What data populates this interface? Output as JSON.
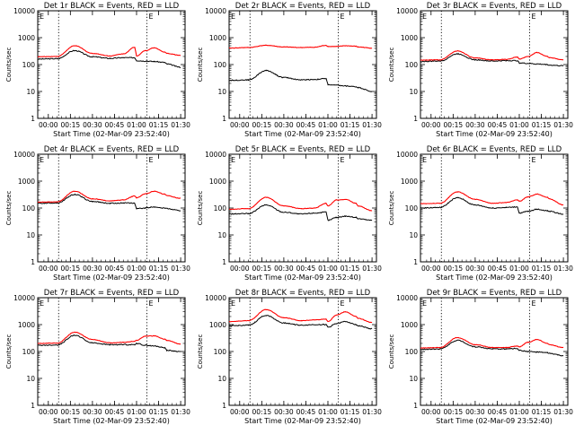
{
  "figure": {
    "xlabel": "Start Time (02-Mar-09 23:52:40)",
    "ylabel": "Counts/sec",
    "x_tick_labels": [
      "00:00",
      "00:15",
      "00:30",
      "00:45",
      "01:00",
      "01:15",
      "01:30"
    ],
    "y_tick_labels": [
      "1",
      "10",
      "100",
      "1000",
      "10000"
    ],
    "marker_label": "E",
    "colors": {
      "events": "#000000",
      "lld": "#ff0000",
      "frame": "#000000",
      "background": "#ffffff"
    }
  },
  "chart_data": [
    {
      "type": "line",
      "title": "Det 1r BLACK = Events, RED = LLD",
      "xlim": [
        -0.12,
        1.55
      ],
      "ylim": [
        1,
        10000
      ],
      "yscale": "log",
      "dotted_vlines": [
        0.117,
        1.117
      ],
      "gaps": [
        [
          0.98,
          1.0
        ],
        [
          1.32,
          1.34
        ]
      ],
      "series": [
        {
          "name": "Events",
          "color": "#000000",
          "x": [
            -0.12,
            0.1,
            0.3,
            0.5,
            0.7,
            0.85,
            0.98,
            1.0,
            1.1,
            1.2,
            1.32,
            1.34,
            1.5
          ],
          "y": [
            160,
            165,
            330,
            195,
            170,
            180,
            180,
            140,
            135,
            130,
            120,
            105,
            80
          ]
        },
        {
          "name": "LLD",
          "color": "#ff0000",
          "x": [
            -0.12,
            0.1,
            0.3,
            0.5,
            0.7,
            0.85,
            0.98,
            1.0,
            1.1,
            1.2,
            1.32,
            1.34,
            1.5
          ],
          "y": [
            195,
            200,
            500,
            260,
            210,
            250,
            440,
            210,
            330,
            420,
            290,
            260,
            220
          ]
        }
      ]
    },
    {
      "type": "line",
      "title": "Det 2r BLACK = Events, RED = LLD",
      "xlim": [
        -0.12,
        1.55
      ],
      "ylim": [
        1,
        10000
      ],
      "yscale": "log",
      "dotted_vlines": [
        0.117,
        1.117
      ],
      "gaps": [
        [
          0.98,
          1.0
        ],
        [
          1.32,
          1.34
        ]
      ],
      "series": [
        {
          "name": "Events",
          "color": "#000000",
          "x": [
            -0.12,
            0.1,
            0.3,
            0.5,
            0.7,
            0.85,
            0.98,
            1.0,
            1.1,
            1.2,
            1.32,
            1.34,
            1.5
          ],
          "y": [
            26,
            27,
            60,
            33,
            27,
            28,
            30,
            18,
            17,
            16,
            15,
            14,
            10
          ]
        },
        {
          "name": "LLD",
          "color": "#ff0000",
          "x": [
            -0.12,
            0.1,
            0.3,
            0.5,
            0.7,
            0.85,
            0.98,
            1.0,
            1.1,
            1.2,
            1.32,
            1.34,
            1.5
          ],
          "y": [
            410,
            430,
            520,
            450,
            430,
            440,
            520,
            470,
            470,
            500,
            480,
            450,
            410
          ]
        }
      ]
    },
    {
      "type": "line",
      "title": "Det 3r BLACK = Events, RED = LLD",
      "xlim": [
        -0.12,
        1.55
      ],
      "ylim": [
        1,
        10000
      ],
      "yscale": "log",
      "dotted_vlines": [
        0.117,
        1.117
      ],
      "gaps": [
        [
          0.98,
          1.0
        ],
        [
          1.32,
          1.34
        ]
      ],
      "series": [
        {
          "name": "Events",
          "color": "#000000",
          "x": [
            -0.12,
            0.1,
            0.3,
            0.5,
            0.7,
            0.85,
            0.98,
            1.0,
            1.1,
            1.2,
            1.32,
            1.34,
            1.5
          ],
          "y": [
            130,
            135,
            250,
            150,
            135,
            140,
            140,
            115,
            110,
            105,
            100,
            95,
            90
          ]
        },
        {
          "name": "LLD",
          "color": "#ff0000",
          "x": [
            -0.12,
            0.1,
            0.3,
            0.5,
            0.7,
            0.85,
            0.98,
            1.0,
            1.1,
            1.2,
            1.32,
            1.34,
            1.5
          ],
          "y": [
            145,
            150,
            320,
            175,
            150,
            155,
            190,
            160,
            200,
            280,
            200,
            180,
            150
          ]
        }
      ]
    },
    {
      "type": "line",
      "title": "Det 4r BLACK = Events, RED = LLD",
      "xlim": [
        -0.12,
        1.55
      ],
      "ylim": [
        1,
        10000
      ],
      "yscale": "log",
      "dotted_vlines": [
        0.117,
        1.117
      ],
      "gaps": [
        [
          0.98,
          1.0
        ],
        [
          1.32,
          1.34
        ]
      ],
      "series": [
        {
          "name": "Events",
          "color": "#000000",
          "x": [
            -0.12,
            0.1,
            0.3,
            0.5,
            0.7,
            0.85,
            0.98,
            1.0,
            1.1,
            1.2,
            1.32,
            1.34,
            1.5
          ],
          "y": [
            150,
            155,
            320,
            175,
            150,
            155,
            150,
            95,
            100,
            110,
            100,
            95,
            80
          ]
        },
        {
          "name": "LLD",
          "color": "#ff0000",
          "x": [
            -0.12,
            0.1,
            0.3,
            0.5,
            0.7,
            0.85,
            0.98,
            1.0,
            1.1,
            1.2,
            1.32,
            1.34,
            1.5
          ],
          "y": [
            165,
            170,
            420,
            220,
            185,
            200,
            280,
            240,
            340,
            420,
            330,
            290,
            230
          ]
        }
      ]
    },
    {
      "type": "line",
      "title": "Det 5r BLACK = Events, RED = LLD",
      "xlim": [
        -0.12,
        1.55
      ],
      "ylim": [
        1,
        10000
      ],
      "yscale": "log",
      "dotted_vlines": [
        0.117,
        1.117
      ],
      "gaps": [
        [
          0.98,
          1.0
        ],
        [
          1.32,
          1.34
        ]
      ],
      "series": [
        {
          "name": "Events",
          "color": "#000000",
          "x": [
            -0.12,
            0.1,
            0.3,
            0.5,
            0.7,
            0.85,
            0.98,
            1.0,
            1.1,
            1.2,
            1.32,
            1.34,
            1.5
          ],
          "y": [
            60,
            62,
            130,
            70,
            60,
            65,
            70,
            35,
            45,
            50,
            45,
            40,
            35
          ]
        },
        {
          "name": "LLD",
          "color": "#ff0000",
          "x": [
            -0.12,
            0.1,
            0.3,
            0.5,
            0.7,
            0.85,
            0.98,
            1.0,
            1.1,
            1.2,
            1.32,
            1.34,
            1.5
          ],
          "y": [
            90,
            95,
            250,
            120,
            95,
            100,
            150,
            120,
            200,
            210,
            150,
            120,
            80
          ]
        }
      ]
    },
    {
      "type": "line",
      "title": "Det 6r BLACK = Events, RED = LLD",
      "xlim": [
        -0.12,
        1.55
      ],
      "ylim": [
        1,
        10000
      ],
      "yscale": "log",
      "dotted_vlines": [
        0.117,
        1.117
      ],
      "gaps": [
        [
          0.98,
          1.0
        ],
        [
          1.32,
          1.34
        ]
      ],
      "series": [
        {
          "name": "Events",
          "color": "#000000",
          "x": [
            -0.12,
            0.1,
            0.3,
            0.5,
            0.7,
            0.85,
            0.98,
            1.0,
            1.1,
            1.2,
            1.32,
            1.34,
            1.5
          ],
          "y": [
            100,
            105,
            240,
            130,
            100,
            105,
            110,
            65,
            75,
            90,
            80,
            75,
            60
          ]
        },
        {
          "name": "LLD",
          "color": "#ff0000",
          "x": [
            -0.12,
            0.1,
            0.3,
            0.5,
            0.7,
            0.85,
            0.98,
            1.0,
            1.1,
            1.2,
            1.32,
            1.34,
            1.5
          ],
          "y": [
            145,
            150,
            400,
            210,
            150,
            160,
            200,
            180,
            260,
            330,
            250,
            220,
            130
          ]
        }
      ]
    },
    {
      "type": "line",
      "title": "Det 7r BLACK = Events, RED = LLD",
      "xlim": [
        -0.12,
        1.55
      ],
      "ylim": [
        1,
        10000
      ],
      "yscale": "log",
      "dotted_vlines": [
        0.117,
        1.117
      ],
      "gaps": [
        [
          0.98,
          1.0
        ],
        [
          1.32,
          1.34
        ]
      ],
      "series": [
        {
          "name": "Events",
          "color": "#000000",
          "x": [
            -0.12,
            0.1,
            0.3,
            0.5,
            0.7,
            0.85,
            0.98,
            1.0,
            1.1,
            1.2,
            1.32,
            1.34,
            1.5
          ],
          "y": [
            170,
            175,
            400,
            210,
            180,
            180,
            180,
            200,
            170,
            160,
            140,
            110,
            100
          ]
        },
        {
          "name": "LLD",
          "color": "#ff0000",
          "x": [
            -0.12,
            0.1,
            0.3,
            0.5,
            0.7,
            0.85,
            0.98,
            1.0,
            1.1,
            1.2,
            1.32,
            1.34,
            1.5
          ],
          "y": [
            200,
            205,
            520,
            280,
            210,
            220,
            240,
            260,
            370,
            380,
            290,
            260,
            190
          ]
        }
      ]
    },
    {
      "type": "line",
      "title": "Det 8r BLACK = Events, RED = LLD",
      "xlim": [
        -0.12,
        1.55
      ],
      "ylim": [
        1,
        10000
      ],
      "yscale": "log",
      "dotted_vlines": [
        0.117,
        1.117
      ],
      "gaps": [
        [
          0.98,
          1.0
        ],
        [
          1.32,
          1.34
        ]
      ],
      "series": [
        {
          "name": "Events",
          "color": "#000000",
          "x": [
            -0.12,
            0.1,
            0.3,
            0.5,
            0.7,
            0.85,
            0.98,
            1.0,
            1.1,
            1.2,
            1.32,
            1.34,
            1.5
          ],
          "y": [
            900,
            950,
            2200,
            1150,
            950,
            1000,
            1000,
            800,
            1100,
            1300,
            1000,
            900,
            700
          ]
        },
        {
          "name": "LLD",
          "color": "#ff0000",
          "x": [
            -0.12,
            0.1,
            0.3,
            0.5,
            0.7,
            0.85,
            0.98,
            1.0,
            1.1,
            1.2,
            1.32,
            1.34,
            1.5
          ],
          "y": [
            1300,
            1400,
            3600,
            1800,
            1400,
            1500,
            1600,
            1300,
            2300,
            3000,
            2000,
            1700,
            1200
          ]
        }
      ]
    },
    {
      "type": "line",
      "title": "Det 9r BLACK = Events, RED = LLD",
      "xlim": [
        -0.12,
        1.55
      ],
      "ylim": [
        1,
        10000
      ],
      "yscale": "log",
      "dotted_vlines": [
        0.117,
        1.117
      ],
      "gaps": [
        [
          0.98,
          1.0
        ],
        [
          1.32,
          1.34
        ]
      ],
      "series": [
        {
          "name": "Events",
          "color": "#000000",
          "x": [
            -0.12,
            0.1,
            0.3,
            0.5,
            0.7,
            0.85,
            0.98,
            1.0,
            1.1,
            1.2,
            1.32,
            1.34,
            1.5
          ],
          "y": [
            120,
            125,
            260,
            150,
            125,
            125,
            130,
            110,
            100,
            95,
            90,
            85,
            70
          ]
        },
        {
          "name": "LLD",
          "color": "#ff0000",
          "x": [
            -0.12,
            0.1,
            0.3,
            0.5,
            0.7,
            0.85,
            0.98,
            1.0,
            1.1,
            1.2,
            1.32,
            1.34,
            1.5
          ],
          "y": [
            135,
            140,
            330,
            180,
            140,
            140,
            160,
            150,
            220,
            280,
            200,
            180,
            140
          ]
        }
      ]
    }
  ]
}
